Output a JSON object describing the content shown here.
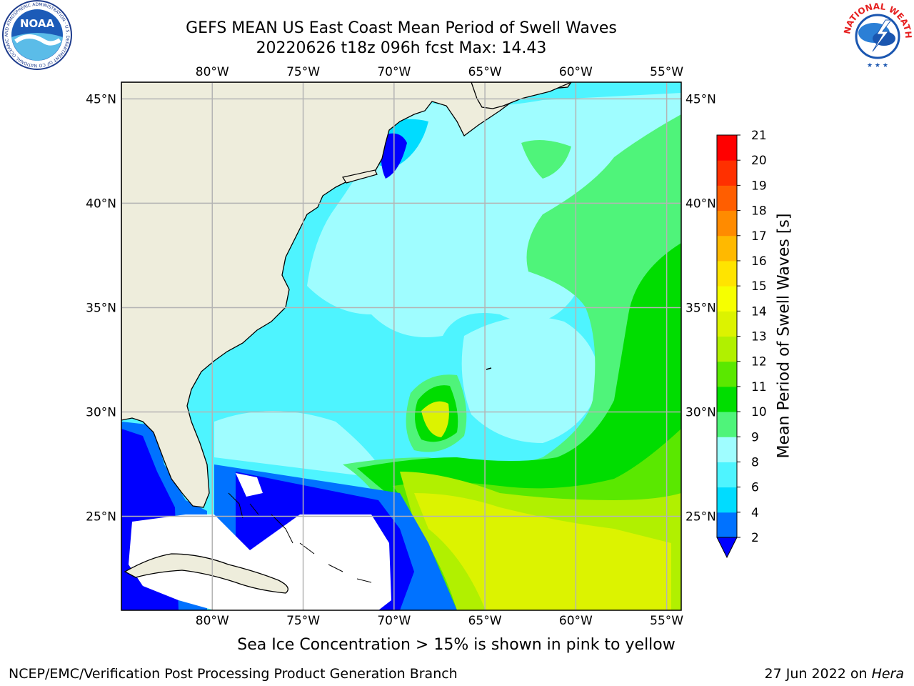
{
  "header": {
    "title_line1": "GEFS MEAN US East Coast Mean Period of Swell Waves",
    "title_line2": "20220626 t18z 096h fcst   Max: 14.43"
  },
  "logos": {
    "noaa": "NOAA",
    "noaa_ring_text": "NATIONAL OCEANIC AND ATMOSPHERIC ADMINISTRATION · U.S. DEPARTMENT OF COMMERCE",
    "nws_ring_text": "NATIONAL WEATHER SERVICE"
  },
  "map": {
    "lon_labels": [
      "80°W",
      "75°W",
      "70°W",
      "65°W",
      "60°W",
      "55°W"
    ],
    "lon_values": [
      -80,
      -75,
      -70,
      -65,
      -60,
      -55
    ],
    "lat_labels": [
      "45°N",
      "40°N",
      "35°N",
      "30°N",
      "25°N"
    ],
    "lat_values": [
      45,
      40,
      35,
      30,
      25
    ],
    "lon_range": [
      -85,
      -54.2
    ],
    "lat_range": [
      20.5,
      45.8
    ],
    "colors": {
      "land": "#eeeddc",
      "grid": "#b4b4b4",
      "no_data": "#ffffff"
    }
  },
  "colorbar": {
    "label": "Mean Period of Swell Waves [s]",
    "tick_labels": [
      "2",
      "4",
      "6",
      "8",
      "9",
      "10",
      "11",
      "12",
      "13",
      "14",
      "15",
      "16",
      "17",
      "18",
      "19",
      "20",
      "21"
    ],
    "levels": [
      2,
      4,
      6,
      8,
      9,
      10,
      11,
      12,
      13,
      14,
      15,
      16,
      17,
      18,
      19,
      20,
      21
    ],
    "colors": [
      "#0072ff",
      "#00dcff",
      "#4ef4ff",
      "#9ffdff",
      "#4ff47a",
      "#00dd00",
      "#5ae800",
      "#b1f000",
      "#dcf300",
      "#f6ff00",
      "#ffe400",
      "#ffb900",
      "#ff8b00",
      "#ff5e00",
      "#ff3000",
      "#ff0000"
    ],
    "under_color": "#0000ff"
  },
  "footer": {
    "ice_note": "Sea Ice Concentration > 15% is shown in pink to yellow",
    "left": "NCEP/EMC/Verification Post Processing Product Generation Branch",
    "right_prefix": "27 Jun 2022 on ",
    "right_host": "Hera"
  }
}
